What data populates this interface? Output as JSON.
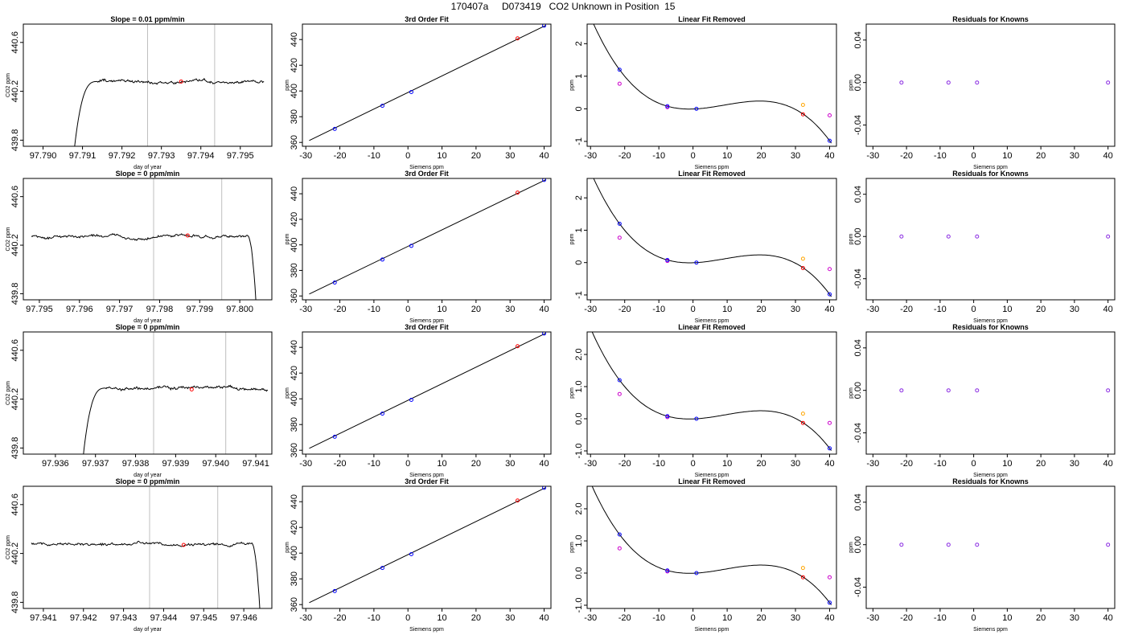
{
  "title": "170407a     D073419   CO2 Unknown in Position  15",
  "colors": {
    "trace": "#000000",
    "gridline": "#bfbfbf",
    "standard_point": "#0000ff",
    "sample_point": "#ff0000",
    "residual_point": "#8a2be2",
    "linear_resid_point": "#cc00cc",
    "unknown_resid_point": "#ffa500"
  },
  "chart_data": [
    {
      "type": "line",
      "title": "Slope =  0.01  ppm/min",
      "xlabel": "day of year",
      "ylabel": "CO2 ppm",
      "xlim": [
        97.7895,
        97.7958
      ],
      "ylim": [
        439.75,
        440.75
      ],
      "xticks": [
        "97.790",
        "97.791",
        "97.792",
        "97.793",
        "97.794",
        "97.795"
      ],
      "yticks": [
        "439.8",
        "440.2",
        "440.6"
      ],
      "vlines": [
        97.79265,
        97.79435
      ],
      "profile": "rise",
      "x_start": 97.7908,
      "x_end": 97.7956,
      "start_value": 439.75,
      "plateau": 440.28,
      "marker": {
        "x": 97.7935,
        "y": 440.28
      }
    },
    {
      "type": "line",
      "title": "3rd Order Fit",
      "xlabel": "Siemens ppm",
      "ylabel": "ppm",
      "xlim": [
        -31,
        42
      ],
      "ylim": [
        357,
        452
      ],
      "xticks": [
        "-30",
        "-20",
        "-10",
        "0",
        "10",
        "20",
        "30",
        "40"
      ],
      "yticks": [
        "360",
        "380",
        "400",
        "420",
        "440"
      ],
      "line": {
        "x": [
          -29,
          40.5
        ],
        "y": [
          361.5,
          451
        ]
      },
      "standards": [
        {
          "x": -21.5,
          "y": 370.5
        },
        {
          "x": -7.5,
          "y": 388.5
        },
        {
          "x": 1,
          "y": 399.2
        },
        {
          "x": 40,
          "y": 450.8
        }
      ],
      "samples": [
        {
          "x": 32.2,
          "y": 440.9
        }
      ]
    },
    {
      "type": "line",
      "title": "Linear Fit Removed",
      "xlabel": "Siemens ppm",
      "ylabel": "ppm",
      "xlim": [
        -31,
        42
      ],
      "ylim": [
        -1.15,
        2.6
      ],
      "xticks": [
        "-30",
        "-20",
        "-10",
        "0",
        "10",
        "20",
        "30",
        "40"
      ],
      "yticks": [
        "-1",
        "0",
        "1",
        "2"
      ],
      "standards": [
        {
          "x": -21.5,
          "y": 1.2
        },
        {
          "x": -7.5,
          "y": 0.08
        },
        {
          "x": 1,
          "y": 0
        },
        {
          "x": 40,
          "y": -0.98
        }
      ],
      "samples": [
        {
          "x": 32.2,
          "y": -0.17
        }
      ],
      "linear_resid": [
        {
          "x": -21.5,
          "y": 0.77
        },
        {
          "x": -7.5,
          "y": 0.05
        },
        {
          "x": 40,
          "y": -0.2
        }
      ],
      "unknown_resid": [
        {
          "x": 32.2,
          "y": 0.12
        }
      ]
    },
    {
      "type": "scatter",
      "title": "Residuals for Knowns",
      "xlabel": "Siemens ppm",
      "ylabel": "ppm",
      "xlim": [
        -32,
        42
      ],
      "ylim": [
        -0.06,
        0.055
      ],
      "xticks": [
        "-30",
        "-20",
        "-10",
        "0",
        "10",
        "20",
        "30",
        "40"
      ],
      "yticks": [
        "-0.04",
        "0.00",
        "0.04"
      ],
      "points": [
        {
          "x": -21.5,
          "y": 0
        },
        {
          "x": -7.5,
          "y": 0
        },
        {
          "x": 1,
          "y": 0
        },
        {
          "x": 40,
          "y": 0
        }
      ]
    },
    {
      "type": "line",
      "title": "Slope =  0  ppm/min",
      "xlabel": "day of year",
      "ylabel": "CO2 ppm",
      "xlim": [
        97.7946,
        97.8008
      ],
      "ylim": [
        439.75,
        440.75
      ],
      "xticks": [
        "97.795",
        "97.796",
        "97.797",
        "97.798",
        "97.799",
        "97.800"
      ],
      "yticks": [
        "439.8",
        "440.2",
        "440.6"
      ],
      "vlines": [
        97.79785,
        97.79955
      ],
      "profile": "drop",
      "x_start": 97.7948,
      "x_end": 97.8004,
      "end_value": 439.75,
      "plateau": 440.27,
      "marker": {
        "x": 97.7987,
        "y": 440.28
      }
    },
    {
      "type": "line",
      "title": "3rd Order Fit",
      "xlabel": "Siemens ppm",
      "ylabel": "ppm",
      "xlim": [
        -31,
        42
      ],
      "ylim": [
        357,
        452
      ],
      "xticks": [
        "-30",
        "-20",
        "-10",
        "0",
        "10",
        "20",
        "30",
        "40"
      ],
      "yticks": [
        "360",
        "380",
        "400",
        "420",
        "440"
      ],
      "line": {
        "x": [
          -29,
          40.5
        ],
        "y": [
          361.5,
          451
        ]
      },
      "standards": [
        {
          "x": -21.5,
          "y": 370.5
        },
        {
          "x": -7.5,
          "y": 388.5
        },
        {
          "x": 1,
          "y": 399.2
        },
        {
          "x": 40,
          "y": 450.8
        }
      ],
      "samples": [
        {
          "x": 32.2,
          "y": 440.9
        }
      ]
    },
    {
      "type": "line",
      "title": "Linear Fit Removed",
      "xlabel": "Siemens ppm",
      "ylabel": "ppm",
      "xlim": [
        -31,
        42
      ],
      "ylim": [
        -1.15,
        2.6
      ],
      "xticks": [
        "-30",
        "-20",
        "-10",
        "0",
        "10",
        "20",
        "30",
        "40"
      ],
      "yticks": [
        "-1",
        "0",
        "1",
        "2"
      ],
      "standards": [
        {
          "x": -21.5,
          "y": 1.2
        },
        {
          "x": -7.5,
          "y": 0.08
        },
        {
          "x": 1,
          "y": 0
        },
        {
          "x": 40,
          "y": -0.98
        }
      ],
      "samples": [
        {
          "x": 32.2,
          "y": -0.17
        }
      ],
      "linear_resid": [
        {
          "x": -21.5,
          "y": 0.77
        },
        {
          "x": -7.5,
          "y": 0.05
        },
        {
          "x": 40,
          "y": -0.2
        }
      ],
      "unknown_resid": [
        {
          "x": 32.2,
          "y": 0.12
        }
      ]
    },
    {
      "type": "scatter",
      "title": "Residuals for Knowns",
      "xlabel": "Siemens ppm",
      "ylabel": "ppm",
      "xlim": [
        -32,
        42
      ],
      "ylim": [
        -0.06,
        0.055
      ],
      "xticks": [
        "-30",
        "-20",
        "-10",
        "0",
        "10",
        "20",
        "30",
        "40"
      ],
      "yticks": [
        "-0.04",
        "0.00",
        "0.04"
      ],
      "points": [
        {
          "x": -21.5,
          "y": 0
        },
        {
          "x": -7.5,
          "y": 0
        },
        {
          "x": 1,
          "y": 0
        },
        {
          "x": 40,
          "y": 0
        }
      ]
    },
    {
      "type": "line",
      "title": "Slope =  0  ppm/min",
      "xlabel": "day of year",
      "ylabel": "CO2 ppm",
      "xlim": [
        97.9352,
        97.9414
      ],
      "ylim": [
        439.75,
        440.75
      ],
      "xticks": [
        "97.936",
        "97.937",
        "97.938",
        "97.939",
        "97.940",
        "97.941"
      ],
      "yticks": [
        "439.8",
        "440.2",
        "440.6"
      ],
      "vlines": [
        97.93845,
        97.94025
      ],
      "profile": "rise",
      "x_start": 97.9367,
      "x_end": 97.9413,
      "start_value": 439.75,
      "plateau": 440.29,
      "marker": {
        "x": 97.9394,
        "y": 440.28
      }
    },
    {
      "type": "line",
      "title": "3rd Order Fit",
      "xlabel": "Siemens ppm",
      "ylabel": "ppm",
      "xlim": [
        -31,
        42
      ],
      "ylim": [
        357,
        452
      ],
      "xticks": [
        "-30",
        "-20",
        "-10",
        "0",
        "10",
        "20",
        "30",
        "40"
      ],
      "yticks": [
        "360",
        "380",
        "400",
        "420",
        "440"
      ],
      "line": {
        "x": [
          -29,
          40.5
        ],
        "y": [
          361.5,
          451
        ]
      },
      "standards": [
        {
          "x": -21.5,
          "y": 370.5
        },
        {
          "x": -7.5,
          "y": 388.5
        },
        {
          "x": 1,
          "y": 399.2
        },
        {
          "x": 40,
          "y": 450.8
        }
      ],
      "samples": [
        {
          "x": 32.2,
          "y": 440.9
        }
      ]
    },
    {
      "type": "line",
      "title": "Linear Fit Removed",
      "xlabel": "Siemens ppm",
      "ylabel": "ppm",
      "xlim": [
        -31,
        42
      ],
      "ylim": [
        -1.1,
        2.7
      ],
      "xticks": [
        "-30",
        "-20",
        "-10",
        "0",
        "10",
        "20",
        "30",
        "40"
      ],
      "yticks": [
        "-1.0",
        "0.0",
        "1.0",
        "2.0"
      ],
      "standards": [
        {
          "x": -21.5,
          "y": 1.2
        },
        {
          "x": -7.5,
          "y": 0.08
        },
        {
          "x": 1,
          "y": 0
        },
        {
          "x": 40,
          "y": -0.92
        }
      ],
      "samples": [
        {
          "x": 32.2,
          "y": -0.13
        }
      ],
      "linear_resid": [
        {
          "x": -21.5,
          "y": 0.77
        },
        {
          "x": -7.5,
          "y": 0.05
        },
        {
          "x": 40,
          "y": -0.13
        }
      ],
      "unknown_resid": [
        {
          "x": 32.2,
          "y": 0.16
        }
      ]
    },
    {
      "type": "scatter",
      "title": "Residuals for Knowns",
      "xlabel": "Siemens ppm",
      "ylabel": "ppm",
      "xlim": [
        -32,
        42
      ],
      "ylim": [
        -0.06,
        0.055
      ],
      "xticks": [
        "-30",
        "-20",
        "-10",
        "0",
        "10",
        "20",
        "30",
        "40"
      ],
      "yticks": [
        "-0.04",
        "0.00",
        "0.04"
      ],
      "points": [
        {
          "x": -21.5,
          "y": 0
        },
        {
          "x": -7.5,
          "y": 0
        },
        {
          "x": 1,
          "y": 0
        },
        {
          "x": 40,
          "y": 0
        }
      ]
    },
    {
      "type": "line",
      "title": "Slope =  0  ppm/min",
      "xlabel": "day of year",
      "ylabel": "CO2 ppm",
      "xlim": [
        97.9405,
        97.9467
      ],
      "ylim": [
        439.75,
        440.75
      ],
      "xticks": [
        "97.941",
        "97.942",
        "97.943",
        "97.944",
        "97.945",
        "97.946"
      ],
      "yticks": [
        "439.8",
        "440.2",
        "440.6"
      ],
      "vlines": [
        97.94365,
        97.94535
      ],
      "profile": "drop",
      "x_start": 97.9407,
      "x_end": 97.9464,
      "end_value": 439.75,
      "plateau": 440.28,
      "marker": {
        "x": 97.9445,
        "y": 440.27
      }
    },
    {
      "type": "line",
      "title": "3rd Order Fit",
      "xlabel": "Siemens ppm",
      "ylabel": "ppm",
      "xlim": [
        -31,
        42
      ],
      "ylim": [
        357,
        452
      ],
      "xticks": [
        "-30",
        "-20",
        "-10",
        "0",
        "10",
        "20",
        "30",
        "40"
      ],
      "yticks": [
        "360",
        "380",
        "400",
        "420",
        "440"
      ],
      "line": {
        "x": [
          -29,
          40.5
        ],
        "y": [
          361.5,
          451
        ]
      },
      "standards": [
        {
          "x": -21.5,
          "y": 370.5
        },
        {
          "x": -7.5,
          "y": 388.5
        },
        {
          "x": 1,
          "y": 399.2
        },
        {
          "x": 40,
          "y": 450.8
        }
      ],
      "samples": [
        {
          "x": 32.2,
          "y": 440.9
        }
      ]
    },
    {
      "type": "line",
      "title": "Linear Fit Removed",
      "xlabel": "Siemens ppm",
      "ylabel": "ppm",
      "xlim": [
        -31,
        42
      ],
      "ylim": [
        -1.1,
        2.7
      ],
      "xticks": [
        "-30",
        "-20",
        "-10",
        "0",
        "10",
        "20",
        "30",
        "40"
      ],
      "yticks": [
        "-1.0",
        "0.0",
        "1.0",
        "2.0"
      ],
      "standards": [
        {
          "x": -21.5,
          "y": 1.2
        },
        {
          "x": -7.5,
          "y": 0.08
        },
        {
          "x": 1,
          "y": 0
        },
        {
          "x": 40,
          "y": -0.92
        }
      ],
      "samples": [
        {
          "x": 32.2,
          "y": -0.13
        }
      ],
      "linear_resid": [
        {
          "x": -21.5,
          "y": 0.77
        },
        {
          "x": -7.5,
          "y": 0.05
        },
        {
          "x": 40,
          "y": -0.13
        }
      ],
      "unknown_resid": [
        {
          "x": 32.2,
          "y": 0.16
        }
      ]
    },
    {
      "type": "scatter",
      "title": "Residuals for Knowns",
      "xlabel": "Siemens ppm",
      "ylabel": "ppm",
      "xlim": [
        -32,
        42
      ],
      "ylim": [
        -0.06,
        0.055
      ],
      "xticks": [
        "-30",
        "-20",
        "-10",
        "0",
        "10",
        "20",
        "30",
        "40"
      ],
      "yticks": [
        "-0.04",
        "0.00",
        "0.04"
      ],
      "points": [
        {
          "x": -21.5,
          "y": 0
        },
        {
          "x": -7.5,
          "y": 0
        },
        {
          "x": 1,
          "y": 0
        },
        {
          "x": 40,
          "y": 0
        }
      ]
    }
  ]
}
